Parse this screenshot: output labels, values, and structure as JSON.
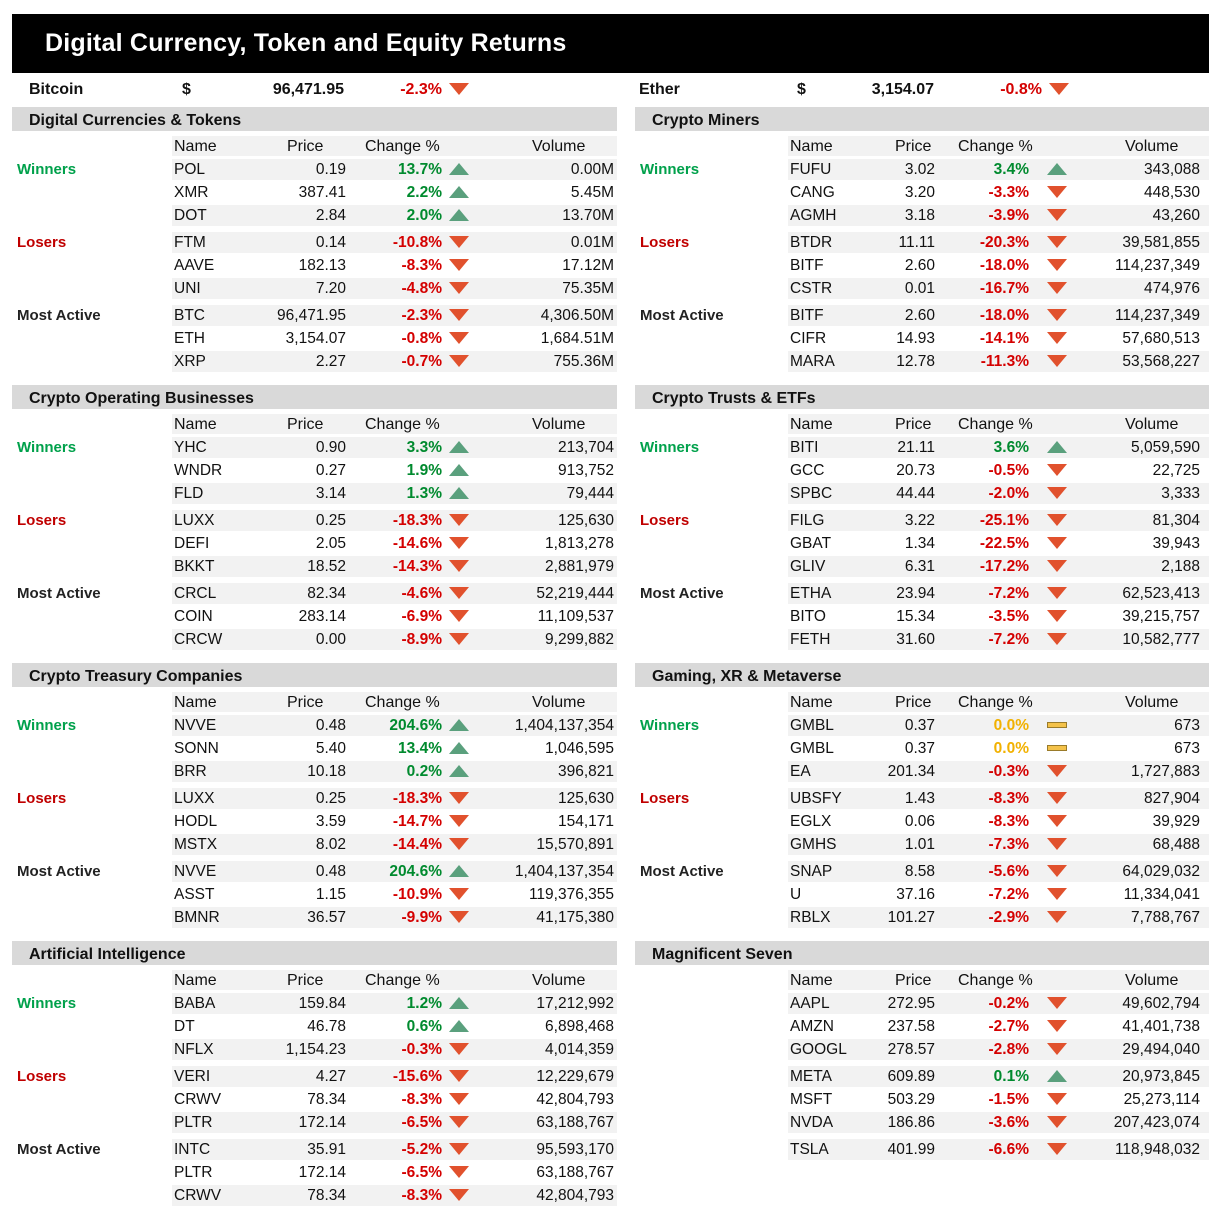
{
  "title": "Digital Currency, Token and Equity Returns",
  "headline": [
    {
      "name": "Bitcoin",
      "currency": "$",
      "price": "96,471.95",
      "change": "-2.3%",
      "dir": "down"
    },
    {
      "name": "Ether",
      "currency": "$",
      "price": "3,154.07",
      "change": "-0.8%",
      "dir": "down"
    }
  ],
  "columns": {
    "name": "Name",
    "price": "Price",
    "change": "Change %",
    "volume": "Volume"
  },
  "group_labels": {
    "winners": "Winners",
    "losers": "Losers",
    "active": "Most Active"
  },
  "colors": {
    "up": "#5aa07d",
    "down": "#e1512d",
    "flat": "#f4c24a",
    "winners": "#00a14b",
    "losers": "#c00000"
  },
  "sections": [
    {
      "title": "Digital Currencies & Tokens",
      "groups": [
        {
          "label": "winners",
          "rows": [
            {
              "name": "POL",
              "price": "0.19",
              "change": "13.7%",
              "dir": "up",
              "volume": "0.00M"
            },
            {
              "name": "XMR",
              "price": "387.41",
              "change": "2.2%",
              "dir": "up",
              "volume": "5.45M"
            },
            {
              "name": "DOT",
              "price": "2.84",
              "change": "2.0%",
              "dir": "up",
              "volume": "13.70M"
            }
          ]
        },
        {
          "label": "losers",
          "rows": [
            {
              "name": "FTM",
              "price": "0.14",
              "change": "-10.8%",
              "dir": "down",
              "volume": "0.01M"
            },
            {
              "name": "AAVE",
              "price": "182.13",
              "change": "-8.3%",
              "dir": "down",
              "volume": "17.12M"
            },
            {
              "name": "UNI",
              "price": "7.20",
              "change": "-4.8%",
              "dir": "down",
              "volume": "75.35M"
            }
          ]
        },
        {
          "label": "active",
          "rows": [
            {
              "name": "BTC",
              "price": "96,471.95",
              "change": "-2.3%",
              "dir": "down",
              "volume": "4,306.50M"
            },
            {
              "name": "ETH",
              "price": "3,154.07",
              "change": "-0.8%",
              "dir": "down",
              "volume": "1,684.51M"
            },
            {
              "name": "XRP",
              "price": "2.27",
              "change": "-0.7%",
              "dir": "down",
              "volume": "755.36M"
            }
          ]
        }
      ]
    },
    {
      "title": "Crypto Miners",
      "groups": [
        {
          "label": "winners",
          "rows": [
            {
              "name": "FUFU",
              "price": "3.02",
              "change": "3.4%",
              "dir": "up",
              "volume": "343,088"
            },
            {
              "name": "CANG",
              "price": "3.20",
              "change": "-3.3%",
              "dir": "down",
              "volume": "448,530"
            },
            {
              "name": "AGMH",
              "price": "3.18",
              "change": "-3.9%",
              "dir": "down",
              "volume": "43,260"
            }
          ]
        },
        {
          "label": "losers",
          "rows": [
            {
              "name": "BTDR",
              "price": "11.11",
              "change": "-20.3%",
              "dir": "down",
              "volume": "39,581,855"
            },
            {
              "name": "BITF",
              "price": "2.60",
              "change": "-18.0%",
              "dir": "down",
              "volume": "114,237,349"
            },
            {
              "name": "CSTR",
              "price": "0.01",
              "change": "-16.7%",
              "dir": "down",
              "volume": "474,976"
            }
          ]
        },
        {
          "label": "active",
          "rows": [
            {
              "name": "BITF",
              "price": "2.60",
              "change": "-18.0%",
              "dir": "down",
              "volume": "114,237,349"
            },
            {
              "name": "CIFR",
              "price": "14.93",
              "change": "-14.1%",
              "dir": "down",
              "volume": "57,680,513"
            },
            {
              "name": "MARA",
              "price": "12.78",
              "change": "-11.3%",
              "dir": "down",
              "volume": "53,568,227"
            }
          ]
        }
      ]
    },
    {
      "title": "Crypto Operating Businesses",
      "groups": [
        {
          "label": "winners",
          "rows": [
            {
              "name": "YHC",
              "price": "0.90",
              "change": "3.3%",
              "dir": "up",
              "volume": "213,704"
            },
            {
              "name": "WNDR",
              "price": "0.27",
              "change": "1.9%",
              "dir": "up",
              "volume": "913,752"
            },
            {
              "name": "FLD",
              "price": "3.14",
              "change": "1.3%",
              "dir": "up",
              "volume": "79,444"
            }
          ]
        },
        {
          "label": "losers",
          "rows": [
            {
              "name": "LUXX",
              "price": "0.25",
              "change": "-18.3%",
              "dir": "down",
              "volume": "125,630"
            },
            {
              "name": "DEFI",
              "price": "2.05",
              "change": "-14.6%",
              "dir": "down",
              "volume": "1,813,278"
            },
            {
              "name": "BKKT",
              "price": "18.52",
              "change": "-14.3%",
              "dir": "down",
              "volume": "2,881,979"
            }
          ]
        },
        {
          "label": "active",
          "rows": [
            {
              "name": "CRCL",
              "price": "82.34",
              "change": "-4.6%",
              "dir": "down",
              "volume": "52,219,444"
            },
            {
              "name": "COIN",
              "price": "283.14",
              "change": "-6.9%",
              "dir": "down",
              "volume": "11,109,537"
            },
            {
              "name": "CRCW",
              "price": "0.00",
              "change": "-8.9%",
              "dir": "down",
              "volume": "9,299,882"
            }
          ]
        }
      ]
    },
    {
      "title": "Crypto Trusts & ETFs",
      "groups": [
        {
          "label": "winners",
          "rows": [
            {
              "name": "BITI",
              "price": "21.11",
              "change": "3.6%",
              "dir": "up",
              "volume": "5,059,590"
            },
            {
              "name": "GCC",
              "price": "20.73",
              "change": "-0.5%",
              "dir": "down",
              "volume": "22,725"
            },
            {
              "name": "SPBC",
              "price": "44.44",
              "change": "-2.0%",
              "dir": "down",
              "volume": "3,333"
            }
          ]
        },
        {
          "label": "losers",
          "rows": [
            {
              "name": "FILG",
              "price": "3.22",
              "change": "-25.1%",
              "dir": "down",
              "volume": "81,304"
            },
            {
              "name": "GBAT",
              "price": "1.34",
              "change": "-22.5%",
              "dir": "down",
              "volume": "39,943"
            },
            {
              "name": "GLIV",
              "price": "6.31",
              "change": "-17.2%",
              "dir": "down",
              "volume": "2,188"
            }
          ]
        },
        {
          "label": "active",
          "rows": [
            {
              "name": "ETHA",
              "price": "23.94",
              "change": "-7.2%",
              "dir": "down",
              "volume": "62,523,413"
            },
            {
              "name": "BITO",
              "price": "15.34",
              "change": "-3.5%",
              "dir": "down",
              "volume": "39,215,757"
            },
            {
              "name": "FETH",
              "price": "31.60",
              "change": "-7.2%",
              "dir": "down",
              "volume": "10,582,777"
            }
          ]
        }
      ]
    },
    {
      "title": "Crypto Treasury Companies",
      "groups": [
        {
          "label": "winners",
          "rows": [
            {
              "name": "NVVE",
              "price": "0.48",
              "change": "204.6%",
              "dir": "up",
              "volume": "1,404,137,354"
            },
            {
              "name": "SONN",
              "price": "5.40",
              "change": "13.4%",
              "dir": "up",
              "volume": "1,046,595"
            },
            {
              "name": "BRR",
              "price": "10.18",
              "change": "0.2%",
              "dir": "up",
              "volume": "396,821"
            }
          ]
        },
        {
          "label": "losers",
          "rows": [
            {
              "name": "LUXX",
              "price": "0.25",
              "change": "-18.3%",
              "dir": "down",
              "volume": "125,630"
            },
            {
              "name": "HODL",
              "price": "3.59",
              "change": "-14.7%",
              "dir": "down",
              "volume": "154,171"
            },
            {
              "name": "MSTX",
              "price": "8.02",
              "change": "-14.4%",
              "dir": "down",
              "volume": "15,570,891"
            }
          ]
        },
        {
          "label": "active",
          "rows": [
            {
              "name": "NVVE",
              "price": "0.48",
              "change": "204.6%",
              "dir": "up",
              "volume": "1,404,137,354"
            },
            {
              "name": "ASST",
              "price": "1.15",
              "change": "-10.9%",
              "dir": "down",
              "volume": "119,376,355"
            },
            {
              "name": "BMNR",
              "price": "36.57",
              "change": "-9.9%",
              "dir": "down",
              "volume": "41,175,380"
            }
          ]
        }
      ]
    },
    {
      "title": "Gaming, XR & Metaverse",
      "groups": [
        {
          "label": "winners",
          "rows": [
            {
              "name": "GMBL",
              "price": "0.37",
              "change": "0.0%",
              "dir": "flat",
              "volume": "673"
            },
            {
              "name": "GMBL",
              "price": "0.37",
              "change": "0.0%",
              "dir": "flat",
              "volume": "673"
            },
            {
              "name": "EA",
              "price": "201.34",
              "change": "-0.3%",
              "dir": "down",
              "volume": "1,727,883"
            }
          ]
        },
        {
          "label": "losers",
          "rows": [
            {
              "name": "UBSFY",
              "price": "1.43",
              "change": "-8.3%",
              "dir": "down",
              "volume": "827,904"
            },
            {
              "name": "EGLX",
              "price": "0.06",
              "change": "-8.3%",
              "dir": "down",
              "volume": "39,929"
            },
            {
              "name": "GMHS",
              "price": "1.01",
              "change": "-7.3%",
              "dir": "down",
              "volume": "68,488"
            }
          ]
        },
        {
          "label": "active",
          "rows": [
            {
              "name": "SNAP",
              "price": "8.58",
              "change": "-5.6%",
              "dir": "down",
              "volume": "64,029,032"
            },
            {
              "name": "U",
              "price": "37.16",
              "change": "-7.2%",
              "dir": "down",
              "volume": "11,334,041"
            },
            {
              "name": "RBLX",
              "price": "101.27",
              "change": "-2.9%",
              "dir": "down",
              "volume": "7,788,767"
            }
          ]
        }
      ]
    },
    {
      "title": "Artificial Intelligence",
      "groups": [
        {
          "label": "winners",
          "rows": [
            {
              "name": "BABA",
              "price": "159.84",
              "change": "1.2%",
              "dir": "up",
              "volume": "17,212,992"
            },
            {
              "name": "DT",
              "price": "46.78",
              "change": "0.6%",
              "dir": "up",
              "volume": "6,898,468"
            },
            {
              "name": "NFLX",
              "price": "1,154.23",
              "change": "-0.3%",
              "dir": "down",
              "volume": "4,014,359"
            }
          ]
        },
        {
          "label": "losers",
          "rows": [
            {
              "name": "VERI",
              "price": "4.27",
              "change": "-15.6%",
              "dir": "down",
              "volume": "12,229,679"
            },
            {
              "name": "CRWV",
              "price": "78.34",
              "change": "-8.3%",
              "dir": "down",
              "volume": "42,804,793"
            },
            {
              "name": "PLTR",
              "price": "172.14",
              "change": "-6.5%",
              "dir": "down",
              "volume": "63,188,767"
            }
          ]
        },
        {
          "label": "active",
          "rows": [
            {
              "name": "INTC",
              "price": "35.91",
              "change": "-5.2%",
              "dir": "down",
              "volume": "95,593,170"
            },
            {
              "name": "PLTR",
              "price": "172.14",
              "change": "-6.5%",
              "dir": "down",
              "volume": "63,188,767"
            },
            {
              "name": "CRWV",
              "price": "78.34",
              "change": "-8.3%",
              "dir": "down",
              "volume": "42,804,793"
            }
          ]
        }
      ]
    },
    {
      "title": "Magnificent Seven",
      "groups": [
        {
          "label": "",
          "rows": [
            {
              "name": "AAPL",
              "price": "272.95",
              "change": "-0.2%",
              "dir": "down",
              "volume": "49,602,794"
            },
            {
              "name": "AMZN",
              "price": "237.58",
              "change": "-2.7%",
              "dir": "down",
              "volume": "41,401,738"
            },
            {
              "name": "GOOGL",
              "price": "278.57",
              "change": "-2.8%",
              "dir": "down",
              "volume": "29,494,040"
            }
          ]
        },
        {
          "label": "",
          "rows": [
            {
              "name": "META",
              "price": "609.89",
              "change": "0.1%",
              "dir": "up",
              "volume": "20,973,845"
            },
            {
              "name": "MSFT",
              "price": "503.29",
              "change": "-1.5%",
              "dir": "down",
              "volume": "25,273,114"
            },
            {
              "name": "NVDA",
              "price": "186.86",
              "change": "-3.6%",
              "dir": "down",
              "volume": "207,423,074"
            }
          ]
        },
        {
          "label": "",
          "rows": [
            {
              "name": "TSLA",
              "price": "401.99",
              "change": "-6.6%",
              "dir": "down",
              "volume": "118,948,032"
            }
          ]
        }
      ]
    }
  ]
}
